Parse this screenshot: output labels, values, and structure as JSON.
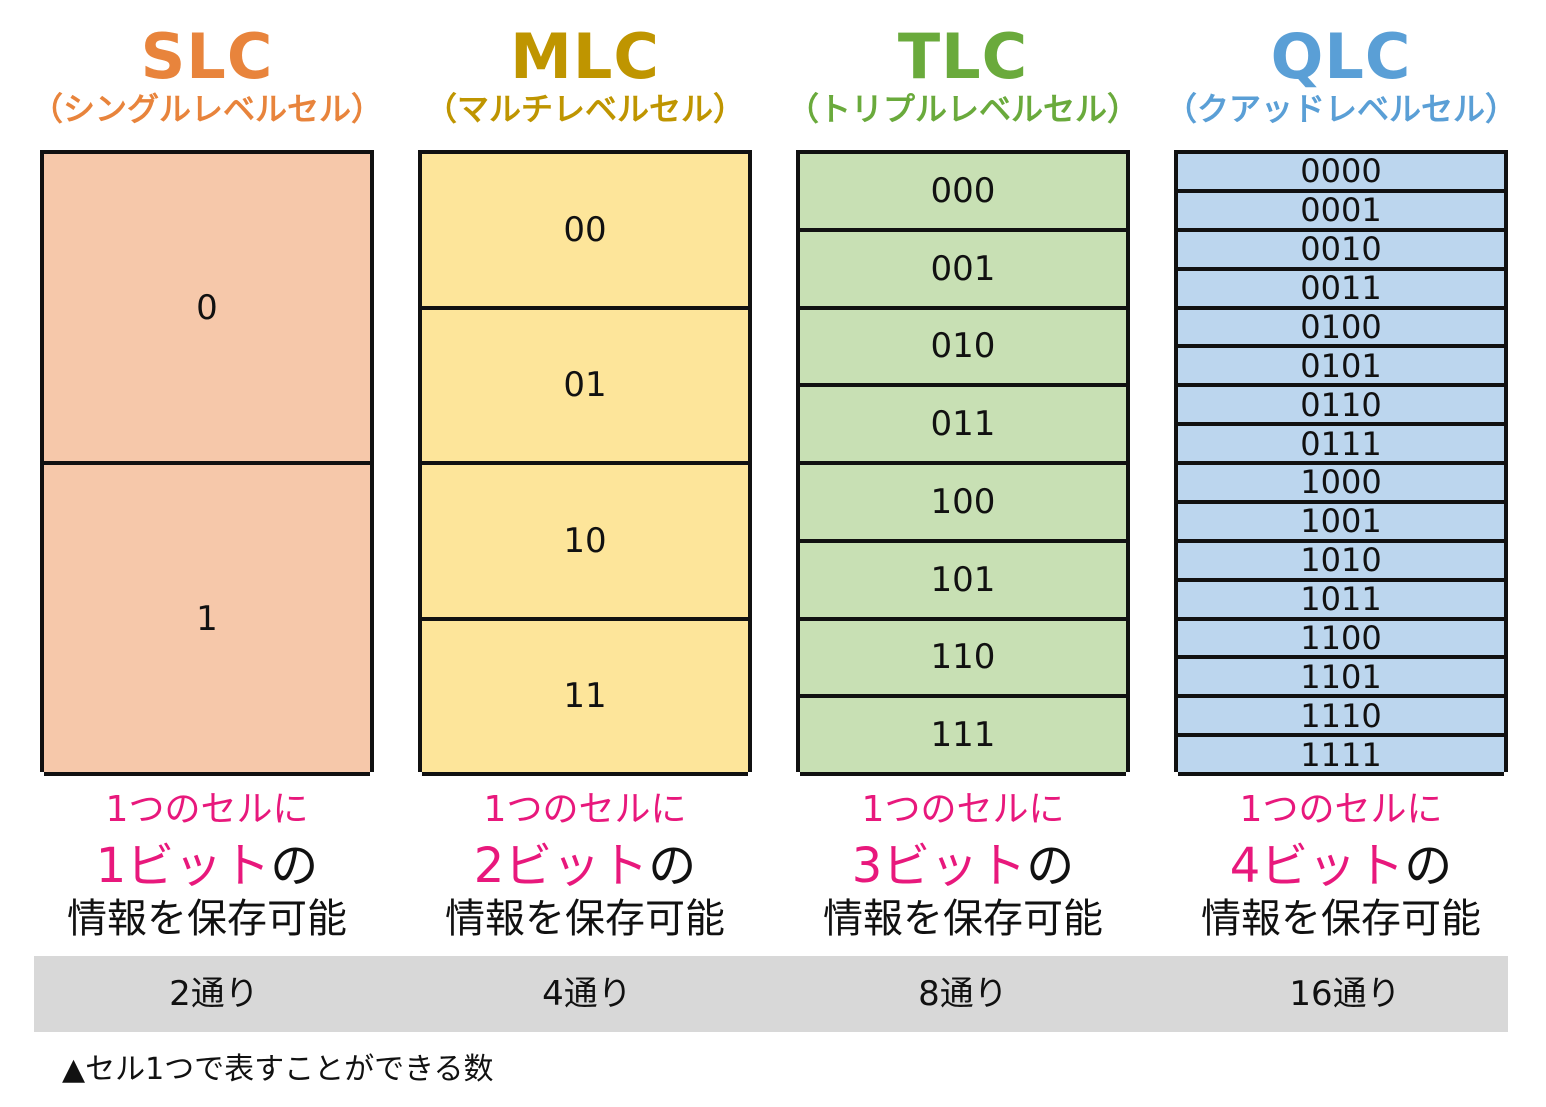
{
  "columns": [
    {
      "title": "SLC",
      "subtitle": "（シングルレベルセル）",
      "title_color": "#e8843c",
      "fill": "#f6c8aa",
      "cells": [
        "0",
        "1"
      ],
      "desc_line1": "1つのセルに",
      "desc_bits": "1ビット",
      "desc_suffix": "の",
      "desc_line3": "情報を保存可能",
      "count": "2通り"
    },
    {
      "title": "MLC",
      "subtitle": "（マルチレベルセル）",
      "title_color": "#bf9500",
      "fill": "#fde59a",
      "cells": [
        "00",
        "01",
        "10",
        "11"
      ],
      "desc_line1": "1つのセルに",
      "desc_bits": "2ビット",
      "desc_suffix": "の",
      "desc_line3": "情報を保存可能",
      "count": "4通り"
    },
    {
      "title": "TLC",
      "subtitle": "（トリプルレベルセル）",
      "title_color": "#6aaa3c",
      "fill": "#c8e0b4",
      "cells": [
        "000",
        "001",
        "010",
        "011",
        "100",
        "101",
        "110",
        "111"
      ],
      "desc_line1": "1つのセルに",
      "desc_bits": "3ビット",
      "desc_suffix": "の",
      "desc_line3": "情報を保存可能",
      "count": "8通り"
    },
    {
      "title": "QLC",
      "subtitle": "（クアッドレベルセル）",
      "title_color": "#5a9fd6",
      "fill": "#bcd6ee",
      "cells": [
        "0000",
        "0001",
        "0010",
        "0011",
        "0100",
        "0101",
        "0110",
        "0111",
        "1000",
        "1001",
        "1010",
        "1011",
        "1100",
        "1101",
        "1110",
        "1111"
      ],
      "desc_line1": "1つのセルに",
      "desc_bits": "4ビット",
      "desc_suffix": "の",
      "desc_line3": "情報を保存可能",
      "count": "16通り"
    }
  ],
  "caption": "▲セル1つで表すことができる数"
}
